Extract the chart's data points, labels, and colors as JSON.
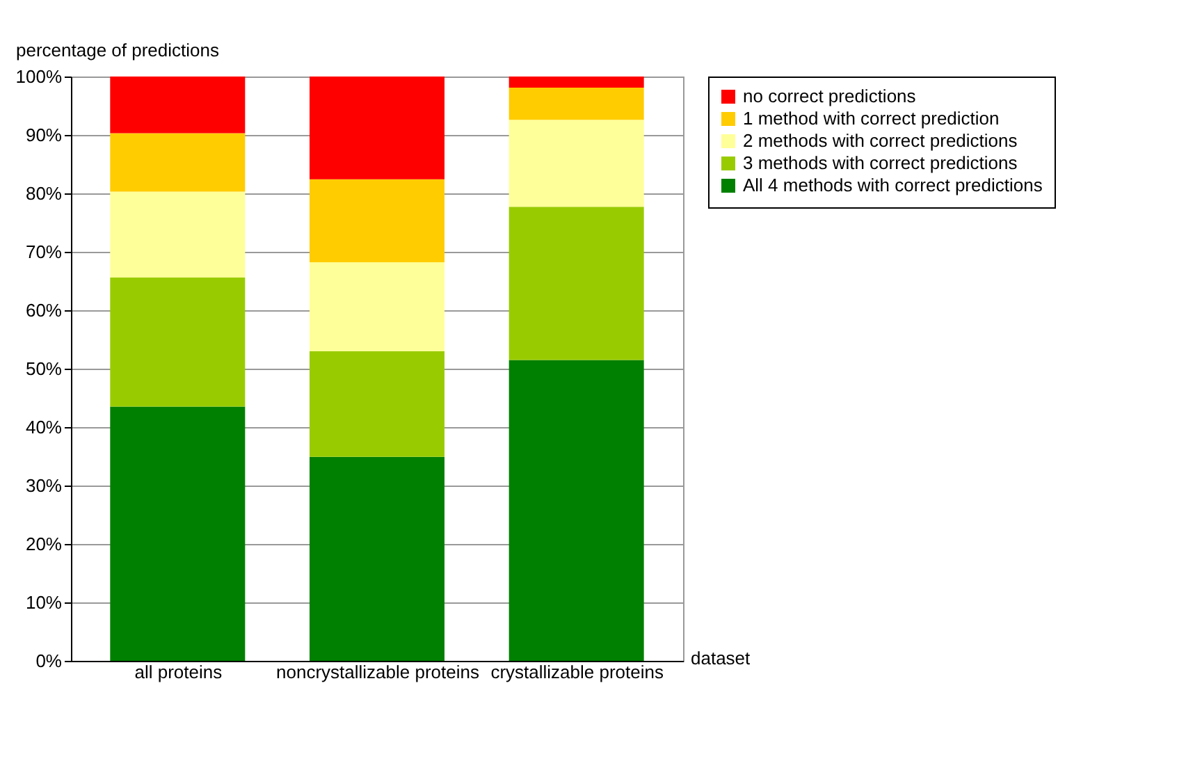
{
  "chart_data": {
    "type": "bar",
    "stacked": true,
    "ylabel": "percentage of predictions",
    "xlabel": "dataset",
    "categories": [
      "all proteins",
      "noncrystallizable proteins",
      "crystallizable proteins"
    ],
    "series": [
      {
        "name": "All 4 methods with correct predictions",
        "color": "#008000",
        "values": [
          43.5,
          34.9,
          51.5
        ]
      },
      {
        "name": "3 methods with correct predictions",
        "color": "#99cc00",
        "values": [
          22.1,
          18.1,
          26.2
        ]
      },
      {
        "name": "2 methods with correct predictions",
        "color": "#ffff99",
        "values": [
          14.7,
          15.2,
          14.9
        ]
      },
      {
        "name": "1 method with correct prediction",
        "color": "#ffcc00",
        "values": [
          10.0,
          14.2,
          5.5
        ]
      },
      {
        "name": "no correct predictions",
        "color": "#ff0000",
        "values": [
          9.7,
          17.6,
          1.9
        ]
      }
    ],
    "ylim": [
      0,
      100
    ],
    "yticks": [
      {
        "value": 0,
        "label": "0%"
      },
      {
        "value": 10,
        "label": "10%"
      },
      {
        "value": 20,
        "label": "20%"
      },
      {
        "value": 30,
        "label": "30%"
      },
      {
        "value": 40,
        "label": "40%"
      },
      {
        "value": 50,
        "label": "50%"
      },
      {
        "value": 60,
        "label": "60%"
      },
      {
        "value": 70,
        "label": "70%"
      },
      {
        "value": 80,
        "label": "80%"
      },
      {
        "value": 90,
        "label": "90%"
      },
      {
        "value": 100,
        "label": "100%"
      }
    ],
    "grid": "y",
    "legend": "right"
  }
}
